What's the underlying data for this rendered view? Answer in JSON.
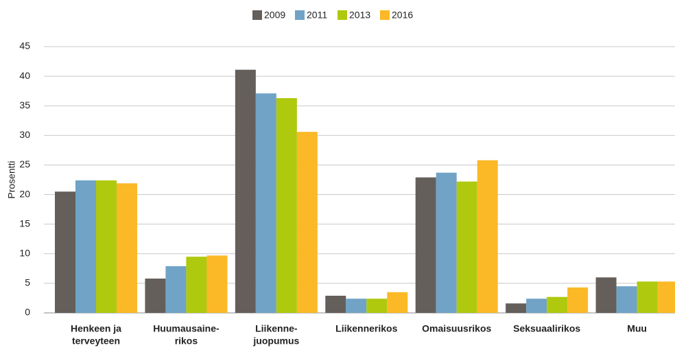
{
  "chart_data": {
    "type": "bar",
    "y_label": "Prosentti",
    "categories": [
      [
        "Henkeen ja",
        "terveyteen"
      ],
      [
        "Huumausaine-",
        "rikos"
      ],
      [
        "Liikenne-",
        "juopumus"
      ],
      [
        "Liikennerikos"
      ],
      [
        "Omaisuusrikos"
      ],
      [
        "Seksuaalirikos"
      ],
      [
        "Muu"
      ]
    ],
    "series": [
      {
        "name": "2009",
        "color": "#645f5a",
        "values": [
          20.5,
          5.8,
          41.1,
          2.9,
          22.9,
          1.6,
          6.0
        ]
      },
      {
        "name": "2011",
        "color": "#70a3c6",
        "values": [
          22.4,
          7.9,
          37.1,
          2.4,
          23.7,
          2.4,
          4.5
        ]
      },
      {
        "name": "2013",
        "color": "#afc90f",
        "values": [
          22.4,
          9.5,
          36.3,
          2.4,
          22.2,
          2.7,
          5.3
        ]
      },
      {
        "name": "2016",
        "color": "#fbb927",
        "values": [
          21.9,
          9.7,
          30.6,
          3.5,
          25.8,
          4.3,
          5.3
        ]
      }
    ],
    "ylim": [
      0,
      45
    ],
    "yticks": [
      0,
      5,
      10,
      15,
      20,
      25,
      30,
      35,
      40,
      45
    ],
    "grid": true,
    "legend": "top"
  }
}
